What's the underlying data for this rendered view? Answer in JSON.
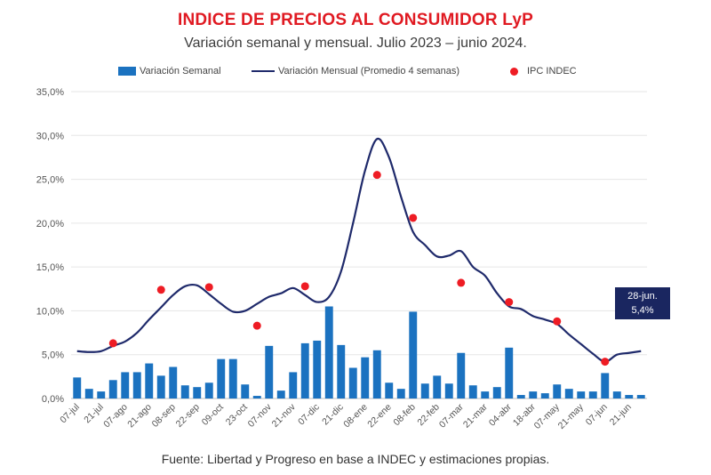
{
  "header": {
    "title": "INDICE DE PRECIOS AL CONSUMIDOR LyP",
    "subtitle": "Variación semanal y mensual. Julio 2023 – junio 2024."
  },
  "legend": {
    "bars_label": "Variación Semanal",
    "line_label": "Variación Mensual (Promedio 4 semanas)",
    "dots_label": "IPC INDEC"
  },
  "footer": {
    "source": "Fuente: Libertad y Progreso en base a INDEC y estimaciones propias."
  },
  "callout": {
    "date": "28-jun.",
    "value": "5,4%"
  },
  "chart_data": {
    "type": "bar",
    "title": "INDICE DE PRECIOS AL CONSUMIDOR LyP",
    "subtitle": "Variación semanal y mensual. Julio 2023 – junio 2024.",
    "xlabel": "",
    "ylabel": "",
    "ylim": [
      0,
      35
    ],
    "y_ticks": [
      "0,0%",
      "5,0%",
      "10,0%",
      "15,0%",
      "20,0%",
      "25,0%",
      "30,0%",
      "35,0%"
    ],
    "y_tick_values": [
      0,
      5,
      10,
      15,
      20,
      25,
      30,
      35
    ],
    "x_tick_labels": [
      "07-jul",
      "21-jul",
      "07-ago",
      "21-ago",
      "08-sep",
      "22-sep",
      "09-oct",
      "23-oct",
      "07-nov",
      "21-nov",
      "07-dic",
      "21-dic",
      "08-ene",
      "22-ene",
      "08-feb",
      "22-feb",
      "07-mar",
      "21-mar",
      "04-abr",
      "18-abr",
      "07-may",
      "21-may",
      "07-jun",
      "21-jun"
    ],
    "grid": true,
    "legend_position": "top",
    "colors": {
      "bars": "#1b72c0",
      "line": "#1f2a6b",
      "dots": "#ee1c24",
      "title": "#e01a22",
      "callout_bg": "#1a2660"
    },
    "series": [
      {
        "name": "Variación Semanal",
        "type": "bar",
        "values": [
          2.4,
          1.1,
          0.8,
          2.1,
          3.0,
          3.0,
          4.0,
          2.6,
          3.6,
          1.5,
          1.3,
          1.8,
          4.5,
          4.5,
          1.6,
          0.3,
          6.0,
          0.9,
          3.0,
          6.3,
          6.6,
          10.5,
          6.1,
          3.5,
          4.7,
          5.5,
          1.8,
          1.1,
          9.9,
          1.7,
          2.6,
          1.7,
          5.2,
          1.5,
          0.8,
          1.3,
          5.8,
          0.4,
          0.8,
          0.6,
          1.6,
          1.1,
          0.8,
          0.8,
          2.9,
          0.8,
          0.4,
          0.4
        ]
      },
      {
        "name": "Variación Mensual (Promedio 4 semanas)",
        "type": "line",
        "values": [
          5.4,
          5.3,
          5.4,
          6.0,
          6.5,
          7.5,
          9.0,
          10.4,
          11.8,
          12.8,
          12.9,
          11.9,
          10.8,
          9.9,
          10.0,
          10.8,
          11.6,
          12.0,
          12.6,
          11.8,
          11.0,
          11.6,
          14.5,
          20.0,
          26.0,
          29.6,
          27.5,
          23.0,
          19.0,
          17.5,
          16.2,
          16.3,
          16.8,
          15.0,
          14.0,
          12.0,
          10.5,
          10.2,
          9.4,
          9.0,
          8.5,
          7.3,
          6.2,
          5.1,
          4.2,
          5.0,
          5.2,
          5.4
        ]
      },
      {
        "name": "IPC INDEC",
        "type": "scatter",
        "indices": [
          3,
          7,
          11,
          15,
          19,
          25,
          28,
          32,
          36,
          40,
          44
        ],
        "values": [
          6.3,
          12.4,
          12.7,
          8.3,
          12.8,
          25.5,
          20.6,
          13.2,
          11.0,
          8.8,
          4.2
        ]
      }
    ]
  }
}
